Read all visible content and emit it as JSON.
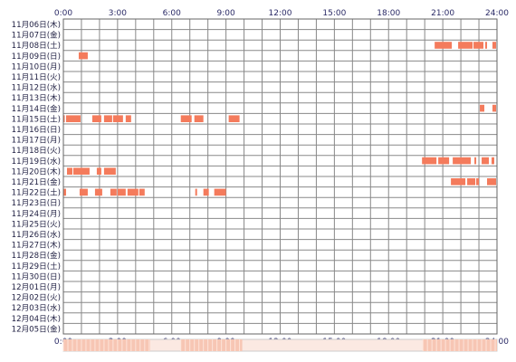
{
  "chart_data": {
    "type": "heatmap",
    "x_unit": "hour",
    "xlim": [
      0,
      24
    ],
    "x_ticks": [
      "0:00",
      "3:00",
      "6:00",
      "9:00",
      "12:00",
      "15:00",
      "18:00",
      "21:00",
      "24:00"
    ],
    "rows": [
      "11月06日(木)",
      "11月07日(金)",
      "11月08日(土)",
      "11月09日(日)",
      "11月10日(月)",
      "11月11日(火)",
      "11月12日(水)",
      "11月13日(木)",
      "11月14日(金)",
      "11月15日(土)",
      "11月16日(日)",
      "11月17日(月)",
      "11月18日(火)",
      "11月19日(水)",
      "11月20日(木)",
      "11月21日(金)",
      "11月22日(土)",
      "11月23日(日)",
      "11月24日(月)",
      "11月25日(火)",
      "11月26日(水)",
      "11月27日(木)",
      "11月28日(金)",
      "11月29日(土)",
      "11月30日(日)",
      "12月01日(月)",
      "12月02日(火)",
      "12月03日(水)",
      "12月04日(木)",
      "12月05日(金)"
    ],
    "intervals": [
      {
        "row": 2,
        "spans": [
          [
            20.55,
            21.5
          ],
          [
            21.85,
            22.65
          ],
          [
            22.7,
            23.25
          ],
          [
            23.35,
            23.45
          ],
          [
            23.75,
            23.95
          ]
        ]
      },
      {
        "row": 3,
        "spans": [
          [
            0.85,
            1.35
          ]
        ]
      },
      {
        "row": 8,
        "spans": [
          [
            23.05,
            23.3
          ],
          [
            23.75,
            23.95
          ]
        ]
      },
      {
        "row": 9,
        "spans": [
          [
            0.0,
            0.05
          ],
          [
            0.15,
            0.95
          ],
          [
            1.6,
            2.1
          ],
          [
            2.25,
            2.7
          ],
          [
            2.75,
            3.3
          ],
          [
            3.45,
            3.75
          ],
          [
            6.5,
            7.1
          ],
          [
            7.25,
            7.75
          ],
          [
            9.15,
            9.75
          ]
        ]
      },
      {
        "row": 13,
        "spans": [
          [
            19.85,
            20.65
          ],
          [
            20.75,
            21.35
          ],
          [
            21.55,
            22.55
          ],
          [
            22.75,
            22.85
          ],
          [
            23.15,
            23.55
          ],
          [
            23.7,
            23.85
          ]
        ]
      },
      {
        "row": 14,
        "spans": [
          [
            0.2,
            0.5
          ],
          [
            0.55,
            1.45
          ],
          [
            1.85,
            2.1
          ],
          [
            2.25,
            2.9
          ]
        ]
      },
      {
        "row": 15,
        "spans": [
          [
            21.45,
            22.25
          ],
          [
            22.35,
            22.8
          ],
          [
            22.85,
            23.0
          ],
          [
            23.45,
            23.95
          ]
        ]
      },
      {
        "row": 16,
        "spans": [
          [
            0.0,
            0.15
          ],
          [
            0.9,
            1.35
          ],
          [
            1.75,
            2.15
          ],
          [
            2.6,
            2.95
          ],
          [
            3.0,
            3.45
          ],
          [
            3.55,
            4.15
          ],
          [
            4.2,
            4.5
          ],
          [
            7.3,
            7.4
          ],
          [
            7.75,
            8.05
          ],
          [
            8.35,
            9.0
          ]
        ]
      }
    ],
    "summary_bands": [
      [
        0.0,
        4.8
      ],
      [
        6.5,
        9.9
      ],
      [
        19.9,
        24.0
      ]
    ],
    "colors": {
      "activity": "#f47b5c",
      "grid": "#888888",
      "axis_text": "#2a2a66",
      "band_base": "#fbe9e2",
      "band_active": "#f7c6b4"
    }
  }
}
